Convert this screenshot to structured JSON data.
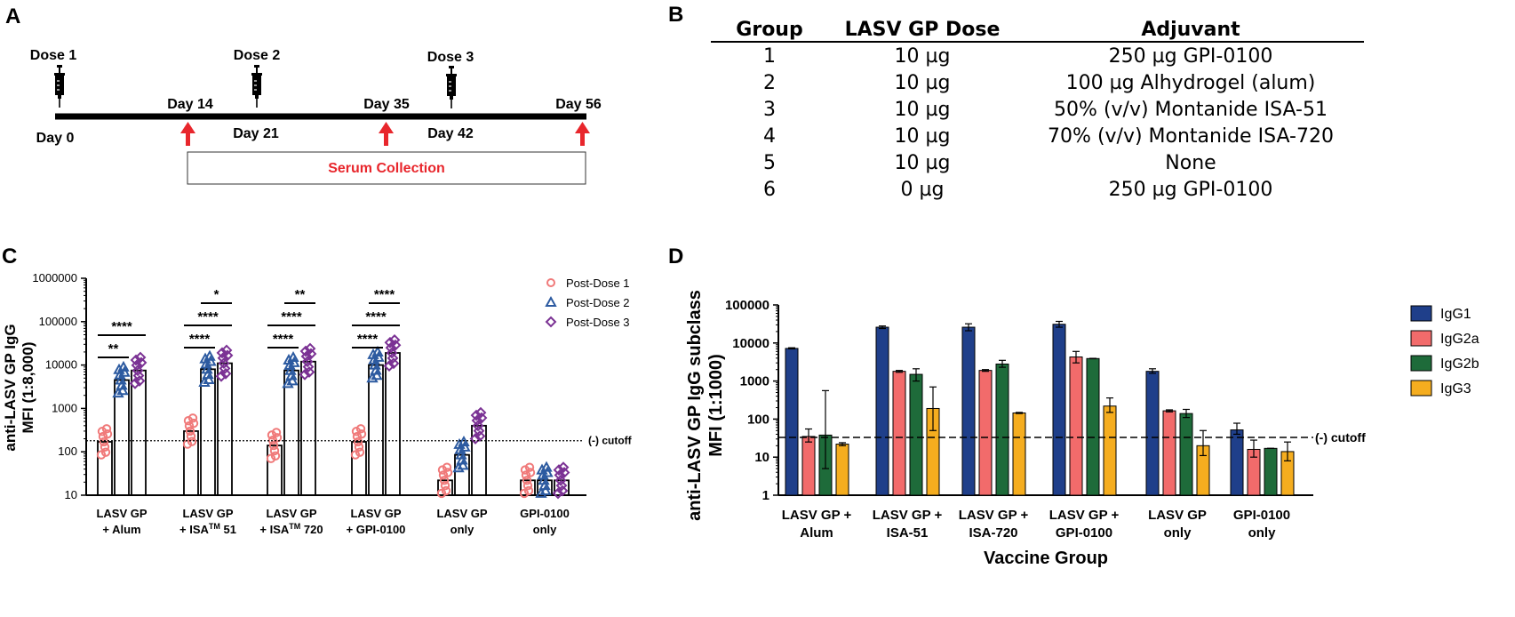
{
  "panel_letters": {
    "a": "A",
    "b": "B",
    "c": "C",
    "d": "D"
  },
  "timeline": {
    "doses": [
      "Dose 1",
      "Dose 2",
      "Dose 3"
    ],
    "days_below": [
      "Day 0",
      "Day 21",
      "Day 42"
    ],
    "days_above": [
      "Day 14",
      "Day 35",
      "Day 56"
    ],
    "serum_label": "Serum Collection",
    "arrow_color": "#e8262c"
  },
  "table": {
    "headers": [
      "Group",
      "LASV GP Dose",
      "Adjuvant"
    ],
    "rows": [
      [
        "1",
        "10 µg",
        "250 µg GPI-0100"
      ],
      [
        "2",
        "10 µg",
        "100 µg Alhydrogel (alum)"
      ],
      [
        "3",
        "10 µg",
        "50% (v/v) Montanide ISA-51"
      ],
      [
        "4",
        "10 µg",
        "70% (v/v) Montanide ISA-720"
      ],
      [
        "5",
        "10 µg",
        "None"
      ],
      [
        "6",
        "0 µg",
        "250 µg GPI-0100"
      ]
    ]
  },
  "chart_data": [
    {
      "type": "bar",
      "panel": "C",
      "ylabel_line1": "anti-LASV GP IgG",
      "ylabel_line2": "MFI (1:8,000)",
      "yscale": "log",
      "ylim": [
        10,
        1000000
      ],
      "yticks": [
        "10",
        "100",
        "1000",
        "10000",
        "100000",
        "1000000"
      ],
      "groups": [
        {
          "line1": "LASV GP",
          "line2": "+ Alum",
          "sup": "",
          "after": ""
        },
        {
          "line1": "LASV GP",
          "line2": "+ ISA",
          "sup": "TM",
          "after": " 51"
        },
        {
          "line1": "LASV GP",
          "line2": "+ ISA",
          "sup": "TM",
          "after": " 720"
        },
        {
          "line1": "LASV GP",
          "line2": "+ GPI-0100",
          "sup": "",
          "after": ""
        },
        {
          "line1": "LASV GP",
          "line2": "only",
          "sup": "",
          "after": ""
        },
        {
          "line1": "GPI-0100",
          "line2": "only",
          "sup": "",
          "after": ""
        }
      ],
      "series": [
        {
          "name": "Post-Dose 1",
          "marker": "circle",
          "color": "#f07a7a",
          "values": [
            170,
            300,
            140,
            170,
            22,
            22
          ]
        },
        {
          "name": "Post-Dose 2",
          "marker": "triangle",
          "color": "#2c5aa0",
          "values": [
            4500,
            8000,
            7500,
            10000,
            85,
            22
          ]
        },
        {
          "name": "Post-Dose 3",
          "marker": "diamond",
          "color": "#7b3294",
          "values": [
            7500,
            11000,
            12000,
            19000,
            400,
            22
          ]
        }
      ],
      "significance": [
        {
          "group": 0,
          "from": 0,
          "to": 1,
          "label": "**"
        },
        {
          "group": 0,
          "from": 0,
          "to": 2,
          "label": "****"
        },
        {
          "group": 1,
          "from": 1,
          "to": 2,
          "label": "*"
        },
        {
          "group": 1,
          "from": 0,
          "to": 2,
          "label": "****"
        },
        {
          "group": 1,
          "from": 0,
          "to": 1,
          "label": "****"
        },
        {
          "group": 2,
          "from": 1,
          "to": 2,
          "label": "**"
        },
        {
          "group": 2,
          "from": 0,
          "to": 2,
          "label": "****"
        },
        {
          "group": 2,
          "from": 0,
          "to": 1,
          "label": "****"
        },
        {
          "group": 3,
          "from": 1,
          "to": 2,
          "label": "****"
        },
        {
          "group": 3,
          "from": 0,
          "to": 2,
          "label": "****"
        },
        {
          "group": 3,
          "from": 0,
          "to": 1,
          "label": "****"
        }
      ],
      "cutoff": 180,
      "cutoff_label": "(-) cutoff",
      "legend_position": "top-right"
    },
    {
      "type": "bar",
      "panel": "D",
      "ylabel_line1": "anti-LASV GP IgG subclass",
      "ylabel_line2": "MFI (1:1000)",
      "xlabel": "Vaccine Group",
      "yscale": "log",
      "ylim": [
        1,
        100000
      ],
      "yticks": [
        "1",
        "10",
        "100",
        "1000",
        "10000",
        "100000"
      ],
      "categories": [
        {
          "line1": "LASV GP +",
          "line2": "Alum"
        },
        {
          "line1": "LASV GP +",
          "line2": "ISA-51"
        },
        {
          "line1": "LASV GP +",
          "line2": "ISA-720"
        },
        {
          "line1": "LASV GP +",
          "line2": "GPI-0100"
        },
        {
          "line1": "LASV GP",
          "line2": "only"
        },
        {
          "line1": "GPI-0100",
          "line2": "only"
        }
      ],
      "series": [
        {
          "name": "IgG1",
          "color": "#1f3f8a",
          "values": [
            7200,
            26000,
            26000,
            31000,
            1800,
            52
          ],
          "err_hi": [
            7500,
            28000,
            32000,
            37000,
            2100,
            78
          ],
          "err_lo": [
            7000,
            24000,
            21000,
            26000,
            1600,
            40
          ]
        },
        {
          "name": "IgG2a",
          "color": "#f26b6b",
          "values": [
            35,
            1800,
            1900,
            4300,
            165,
            16
          ],
          "err_hi": [
            55,
            1900,
            2000,
            6000,
            175,
            28
          ],
          "err_lo": [
            25,
            1700,
            1800,
            3000,
            155,
            10
          ]
        },
        {
          "name": "IgG2b",
          "color": "#1e6b3a",
          "values": [
            38,
            1500,
            2800,
            3900,
            140,
            17
          ],
          "err_hi": [
            560,
            2100,
            3500,
            3950,
            180,
            17
          ],
          "err_lo": [
            5,
            1000,
            2300,
            3850,
            110,
            17
          ]
        },
        {
          "name": "IgG3",
          "color": "#f5ad1f",
          "values": [
            22,
            190,
            145,
            220,
            20,
            14
          ],
          "err_hi": [
            24,
            700,
            150,
            360,
            50,
            25
          ],
          "err_lo": [
            20,
            50,
            140,
            150,
            11,
            8
          ]
        }
      ],
      "cutoff": 33,
      "cutoff_label": "(-) cutoff",
      "legend_position": "top-right"
    }
  ]
}
